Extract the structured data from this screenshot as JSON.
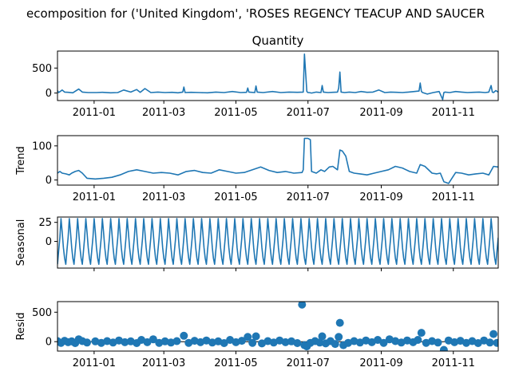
{
  "figure": {
    "suptitle": "ecomposition for ('United Kingdom', 'ROSES REGENCY TEACUP AND SAUCER"
  },
  "colors": {
    "series": "#1f77b4",
    "axes": "#000000"
  },
  "chart_data": [
    {
      "type": "line",
      "title": "Quantity",
      "ylabel": "",
      "x_range": [
        "2010-12-01",
        "2011-12-09"
      ],
      "ylim": [
        -150,
        840
      ],
      "yticks": [
        0,
        500
      ],
      "xticks": [
        "2011-01",
        "2011-03",
        "2011-05",
        "2011-07",
        "2011-09",
        "2011-11"
      ],
      "show_xtick_labels": true,
      "series": [
        {
          "x": [
            "2010-12-01",
            "2010-12-02",
            "2010-12-05",
            "2010-12-07",
            "2010-12-10",
            "2010-12-14",
            "2010-12-19",
            "2010-12-22",
            "2010-12-27",
            "2011-01-03",
            "2011-01-08",
            "2011-01-15",
            "2011-01-21",
            "2011-01-26",
            "2011-02-01",
            "2011-02-06",
            "2011-02-09",
            "2011-02-13",
            "2011-02-18",
            "2011-02-24",
            "2011-03-02",
            "2011-03-08",
            "2011-03-13",
            "2011-03-17",
            "2011-03-18",
            "2011-03-19",
            "2011-03-24",
            "2011-03-31",
            "2011-04-07",
            "2011-04-14",
            "2011-04-21",
            "2011-04-28",
            "2011-05-05",
            "2011-05-10",
            "2011-05-11",
            "2011-05-12",
            "2011-05-17",
            "2011-05-18",
            "2011-05-19",
            "2011-05-24",
            "2011-06-01",
            "2011-06-08",
            "2011-06-15",
            "2011-06-22",
            "2011-06-27",
            "2011-06-28",
            "2011-06-29",
            "2011-06-30",
            "2011-07-01",
            "2011-07-02",
            "2011-07-04",
            "2011-07-08",
            "2011-07-12",
            "2011-07-13",
            "2011-07-14",
            "2011-07-18",
            "2011-07-22",
            "2011-07-26",
            "2011-07-27",
            "2011-07-28",
            "2011-07-29",
            "2011-08-01",
            "2011-08-05",
            "2011-08-10",
            "2011-08-15",
            "2011-08-20",
            "2011-08-25",
            "2011-08-30",
            "2011-09-04",
            "2011-09-09",
            "2011-09-14",
            "2011-09-19",
            "2011-09-24",
            "2011-09-29",
            "2011-10-03",
            "2011-10-04",
            "2011-10-05",
            "2011-10-06",
            "2011-10-10",
            "2011-10-15",
            "2011-10-20",
            "2011-10-23",
            "2011-10-24",
            "2011-10-25",
            "2011-10-29",
            "2011-11-03",
            "2011-11-08",
            "2011-11-13",
            "2011-11-18",
            "2011-11-23",
            "2011-11-28",
            "2011-12-01",
            "2011-12-03",
            "2011-12-04",
            "2011-12-05",
            "2011-12-07",
            "2011-12-09"
          ],
          "values": [
            50,
            10,
            60,
            20,
            15,
            5,
            80,
            20,
            10,
            10,
            15,
            5,
            10,
            60,
            20,
            70,
            15,
            90,
            10,
            20,
            10,
            15,
            5,
            20,
            120,
            10,
            15,
            10,
            5,
            20,
            10,
            30,
            10,
            15,
            100,
            20,
            10,
            140,
            20,
            10,
            30,
            10,
            20,
            15,
            20,
            780,
            400,
            30,
            10,
            10,
            0,
            20,
            10,
            150,
            20,
            10,
            15,
            20,
            100,
            420,
            20,
            10,
            20,
            10,
            30,
            15,
            20,
            60,
            10,
            20,
            15,
            10,
            20,
            30,
            40,
            200,
            30,
            10,
            -20,
            10,
            30,
            -130,
            10,
            20,
            10,
            30,
            20,
            10,
            15,
            20,
            10,
            20,
            150,
            20,
            10,
            50,
            20
          ]
        }
      ]
    },
    {
      "type": "line",
      "title": "",
      "ylabel": "Trend",
      "x_range": [
        "2010-12-01",
        "2011-12-09"
      ],
      "ylim": [
        -15,
        130
      ],
      "yticks": [
        0,
        100
      ],
      "xticks": [
        "2011-01",
        "2011-03",
        "2011-05",
        "2011-07",
        "2011-09",
        "2011-11"
      ],
      "show_xtick_labels": true,
      "series": [
        {
          "x": [
            "2010-12-01",
            "2010-12-03",
            "2010-12-05",
            "2010-12-08",
            "2010-12-11",
            "2010-12-13",
            "2010-12-16",
            "2010-12-19",
            "2010-12-22",
            "2010-12-26",
            "2011-01-02",
            "2011-01-09",
            "2011-01-16",
            "2011-01-23",
            "2011-01-30",
            "2011-02-06",
            "2011-02-13",
            "2011-02-20",
            "2011-02-27",
            "2011-03-06",
            "2011-03-13",
            "2011-03-20",
            "2011-03-27",
            "2011-04-03",
            "2011-04-10",
            "2011-04-17",
            "2011-04-24",
            "2011-05-01",
            "2011-05-08",
            "2011-05-15",
            "2011-05-22",
            "2011-05-29",
            "2011-06-05",
            "2011-06-12",
            "2011-06-19",
            "2011-06-26",
            "2011-06-27",
            "2011-06-28",
            "2011-07-01",
            "2011-07-03",
            "2011-07-04",
            "2011-07-08",
            "2011-07-12",
            "2011-07-15",
            "2011-07-19",
            "2011-07-22",
            "2011-07-26",
            "2011-07-28",
            "2011-07-30",
            "2011-08-02",
            "2011-08-05",
            "2011-08-09",
            "2011-08-14",
            "2011-08-20",
            "2011-08-26",
            "2011-09-01",
            "2011-09-07",
            "2011-09-13",
            "2011-09-19",
            "2011-09-25",
            "2011-10-01",
            "2011-10-04",
            "2011-10-08",
            "2011-10-14",
            "2011-10-18",
            "2011-10-21",
            "2011-10-24",
            "2011-10-28",
            "2011-11-03",
            "2011-11-08",
            "2011-11-14",
            "2011-11-20",
            "2011-11-26",
            "2011-12-01",
            "2011-12-05",
            "2011-12-09"
          ],
          "values": [
            20,
            25,
            20,
            18,
            15,
            20,
            25,
            28,
            20,
            5,
            3,
            5,
            8,
            15,
            25,
            30,
            25,
            20,
            22,
            20,
            15,
            25,
            28,
            22,
            20,
            30,
            25,
            20,
            22,
            30,
            38,
            28,
            22,
            25,
            20,
            22,
            30,
            122,
            122,
            118,
            25,
            20,
            30,
            25,
            38,
            40,
            30,
            88,
            85,
            70,
            25,
            20,
            18,
            15,
            20,
            25,
            30,
            40,
            35,
            25,
            20,
            45,
            40,
            20,
            18,
            20,
            -5,
            -10,
            22,
            20,
            15,
            18,
            20,
            15,
            40,
            38
          ]
        }
      ]
    },
    {
      "type": "line",
      "title": "",
      "ylabel": "Seasonal",
      "x_range": [
        "2010-12-01",
        "2011-12-09"
      ],
      "ylim": [
        -35,
        32
      ],
      "yticks": [
        0,
        25
      ],
      "xticks": [
        "2011-01",
        "2011-03",
        "2011-05",
        "2011-07",
        "2011-09",
        "2011-11"
      ],
      "show_xtick_labels": false,
      "pattern": {
        "period_days": 7,
        "cycle_values": [
          -30,
          -12,
          5,
          30,
          12,
          -8,
          -22
        ]
      },
      "series": [
        {
          "name": ""
        }
      ]
    },
    {
      "type": "scatter",
      "title": "",
      "ylabel": "Resid",
      "x_range": [
        "2010-12-01",
        "2011-12-09"
      ],
      "ylim": [
        -160,
        680
      ],
      "yticks": [
        0,
        500
      ],
      "xticks": [
        "2011-01",
        "2011-03",
        "2011-05",
        "2011-07",
        "2011-09",
        "2011-11"
      ],
      "show_xtick_labels": true,
      "zero_line": true,
      "series": [
        {
          "x": [
            "2010-12-01",
            "2010-12-04",
            "2010-12-07",
            "2010-12-10",
            "2010-12-13",
            "2010-12-16",
            "2010-12-19",
            "2010-12-22",
            "2010-12-26",
            "2011-01-02",
            "2011-01-07",
            "2011-01-12",
            "2011-01-17",
            "2011-01-22",
            "2011-01-27",
            "2011-02-01",
            "2011-02-06",
            "2011-02-10",
            "2011-02-15",
            "2011-02-20",
            "2011-02-25",
            "2011-03-02",
            "2011-03-07",
            "2011-03-12",
            "2011-03-18",
            "2011-03-22",
            "2011-03-27",
            "2011-04-01",
            "2011-04-06",
            "2011-04-11",
            "2011-04-16",
            "2011-04-21",
            "2011-04-26",
            "2011-05-01",
            "2011-05-06",
            "2011-05-11",
            "2011-05-15",
            "2011-05-18",
            "2011-05-23",
            "2011-05-28",
            "2011-06-02",
            "2011-06-07",
            "2011-06-12",
            "2011-06-17",
            "2011-06-22",
            "2011-06-26",
            "2011-06-28",
            "2011-06-30",
            "2011-07-03",
            "2011-07-07",
            "2011-07-11",
            "2011-07-13",
            "2011-07-16",
            "2011-07-20",
            "2011-07-24",
            "2011-07-27",
            "2011-07-28",
            "2011-07-31",
            "2011-08-04",
            "2011-08-09",
            "2011-08-14",
            "2011-08-19",
            "2011-08-24",
            "2011-08-29",
            "2011-09-03",
            "2011-09-08",
            "2011-09-13",
            "2011-09-18",
            "2011-09-23",
            "2011-09-28",
            "2011-10-02",
            "2011-10-05",
            "2011-10-09",
            "2011-10-14",
            "2011-10-19",
            "2011-10-24",
            "2011-10-28",
            "2011-11-02",
            "2011-11-07",
            "2011-11-12",
            "2011-11-17",
            "2011-11-22",
            "2011-11-27",
            "2011-12-02",
            "2011-12-05",
            "2011-12-08"
          ],
          "values": [
            10,
            -20,
            15,
            -10,
            5,
            -25,
            40,
            10,
            -15,
            5,
            -20,
            10,
            -15,
            20,
            -10,
            5,
            -25,
            30,
            -10,
            40,
            -20,
            5,
            -15,
            10,
            100,
            -20,
            15,
            -10,
            20,
            -15,
            5,
            -25,
            30,
            -10,
            15,
            80,
            -20,
            90,
            -30,
            10,
            -15,
            20,
            -10,
            5,
            -25,
            630,
            -60,
            -80,
            -20,
            10,
            -15,
            90,
            -30,
            10,
            -40,
            80,
            320,
            -60,
            -20,
            10,
            -15,
            20,
            -10,
            30,
            -20,
            40,
            10,
            -15,
            20,
            -10,
            30,
            150,
            -20,
            10,
            -15,
            -140,
            20,
            -10,
            15,
            -20,
            10,
            -25,
            20,
            -15,
            130,
            -20
          ]
        }
      ]
    }
  ]
}
